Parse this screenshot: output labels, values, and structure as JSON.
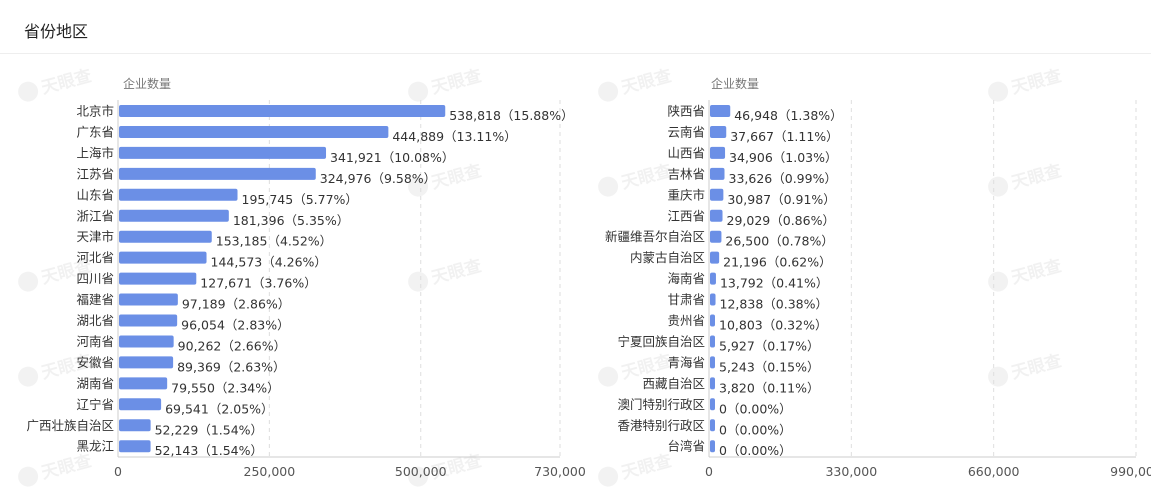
{
  "page": {
    "title": "省份地区"
  },
  "watermark": "天眼查",
  "colors": {
    "bar": "#6b8fe6",
    "grid": "#dedede",
    "axis": "#cccccc"
  },
  "chart_data": [
    {
      "type": "bar",
      "orientation": "horizontal",
      "ylabel": "企业数量",
      "xlim": [
        0,
        730000
      ],
      "xticks": [
        0,
        250000,
        500000,
        730000
      ],
      "xtick_labels": [
        "0",
        "250,000",
        "500,000",
        "730,000"
      ],
      "categories": [
        "北京市",
        "广东省",
        "上海市",
        "江苏省",
        "山东省",
        "浙江省",
        "天津市",
        "河北省",
        "四川省",
        "福建省",
        "湖北省",
        "河南省",
        "安徽省",
        "湖南省",
        "辽宁省",
        "广西壮族自治区",
        "黑龙江"
      ],
      "values": [
        538818,
        444889,
        341921,
        324976,
        195745,
        181396,
        153185,
        144573,
        127671,
        97189,
        96054,
        90262,
        89369,
        79550,
        69541,
        52229,
        52143
      ],
      "data_labels": [
        "538,818（15.88%）",
        "444,889（13.11%）",
        "341,921（10.08%）",
        "324,976（9.58%）",
        "195,745（5.77%）",
        "181,396（5.35%）",
        "153,185（4.52%）",
        "144,573（4.26%）",
        "127,671（3.76%）",
        "97,189（2.86%）",
        "96,054（2.83%）",
        "90,262（2.66%）",
        "89,369（2.63%）",
        "79,550（2.34%）",
        "69,541（2.05%）",
        "52,229（1.54%）",
        "52,143（1.54%）"
      ],
      "grid": true
    },
    {
      "type": "bar",
      "orientation": "horizontal",
      "ylabel": "企业数量",
      "xlim": [
        0,
        990000
      ],
      "xticks": [
        0,
        330000,
        660000,
        990000
      ],
      "xtick_labels": [
        "0",
        "330,000",
        "660,000",
        "990,000"
      ],
      "categories": [
        "陕西省",
        "云南省",
        "山西省",
        "吉林省",
        "重庆市",
        "江西省",
        "新疆维吾尔自治区",
        "内蒙古自治区",
        "海南省",
        "甘肃省",
        "贵州省",
        "宁夏回族自治区",
        "青海省",
        "西藏自治区",
        "澳门特别行政区",
        "香港特别行政区",
        "台湾省"
      ],
      "values": [
        46948,
        37667,
        34906,
        33626,
        30987,
        29029,
        26500,
        21196,
        13792,
        12838,
        10803,
        5927,
        5243,
        3820,
        0,
        0,
        0
      ],
      "data_labels": [
        "46,948（1.38%）",
        "37,667（1.11%）",
        "34,906（1.03%）",
        "33,626（0.99%）",
        "30,987（0.91%）",
        "29,029（0.86%）",
        "26,500（0.78%）",
        "21,196（0.62%）",
        "13,792（0.41%）",
        "12,838（0.38%）",
        "10,803（0.32%）",
        "5,927（0.17%）",
        "5,243（0.15%）",
        "3,820（0.11%）",
        "0（0.00%）",
        "0（0.00%）",
        "0（0.00%）"
      ],
      "grid": true
    }
  ]
}
